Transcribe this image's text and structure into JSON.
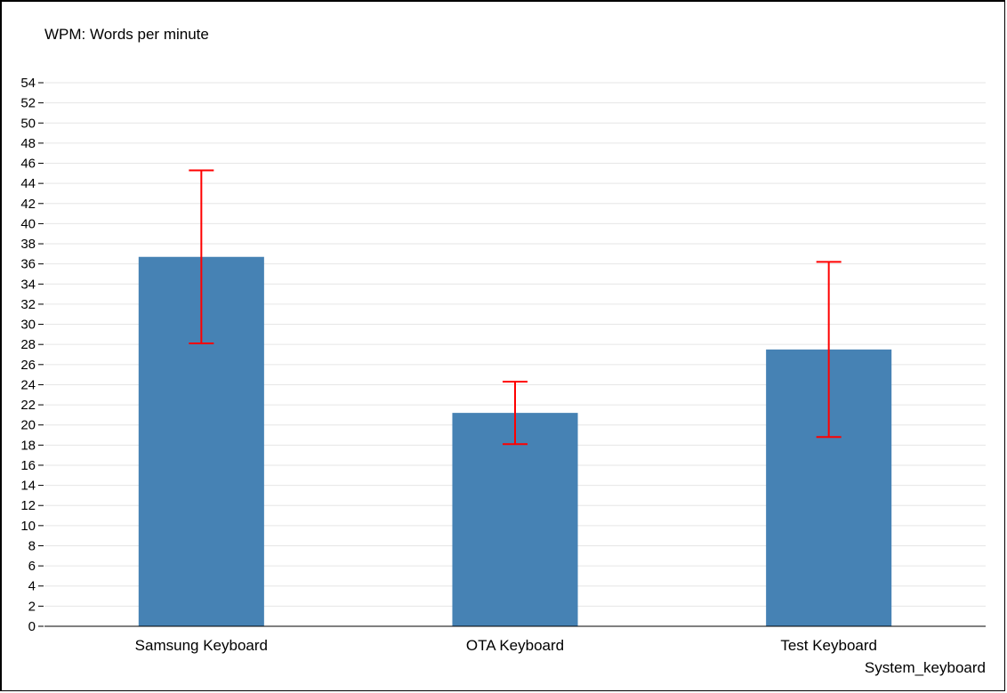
{
  "chart_data": {
    "type": "bar",
    "title": "WPM: Words per minute",
    "xlabel": "System_keyboard",
    "ylabel": "",
    "categories": [
      "Samsung Keyboard",
      "OTA Keyboard",
      "Test Keyboard"
    ],
    "values": [
      36.7,
      21.2,
      27.5
    ],
    "error_bars": [
      {
        "low": 28.1,
        "high": 45.3
      },
      {
        "low": 18.1,
        "high": 24.3
      },
      {
        "low": 18.8,
        "high": 36.2
      }
    ],
    "ylim": [
      0,
      54
    ],
    "yticks": [
      0,
      2,
      4,
      6,
      8,
      10,
      12,
      14,
      16,
      18,
      20,
      22,
      24,
      26,
      28,
      30,
      32,
      34,
      36,
      38,
      40,
      42,
      44,
      46,
      48,
      50,
      52,
      54
    ],
    "grid": true,
    "legend": "none",
    "colors": {
      "bar": "#4682b4",
      "error_bar": "#ff0000",
      "grid": "#e6e6e6",
      "axis": "#000000"
    }
  }
}
